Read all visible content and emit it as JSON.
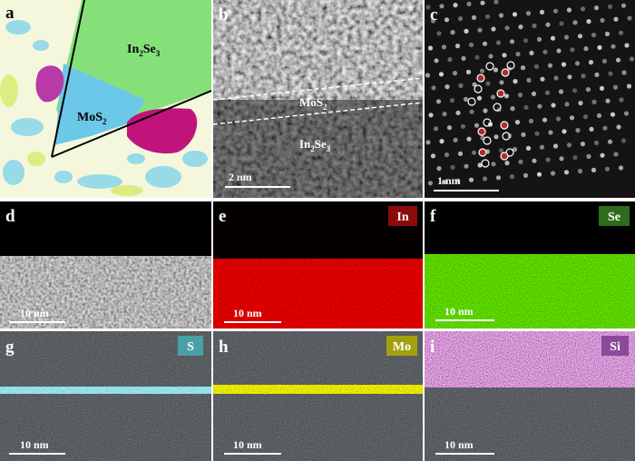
{
  "panels": [
    {
      "letter": "a",
      "annotations": [
        [
          "In",
          "2",
          "Se",
          "3"
        ],
        [
          "MoS",
          "2"
        ]
      ]
    },
    {
      "letter": "b",
      "annotations": [
        [
          "MoS",
          "2"
        ],
        [
          "In",
          "2",
          "Se",
          "3"
        ]
      ],
      "scale_bar": "2 nm"
    },
    {
      "letter": "c",
      "scale_bar": "1 nm"
    },
    {
      "letter": "d",
      "scale_bar": "10 nm"
    },
    {
      "letter": "e",
      "element": "In",
      "scale_bar": "10 nm"
    },
    {
      "letter": "f",
      "element": "Se",
      "scale_bar": "10 nm"
    },
    {
      "letter": "g",
      "element": "S",
      "scale_bar": "10 nm"
    },
    {
      "letter": "h",
      "element": "Mo",
      "scale_bar": "10 nm"
    },
    {
      "letter": "i",
      "element": "Si",
      "scale_bar": "10 nm"
    }
  ]
}
